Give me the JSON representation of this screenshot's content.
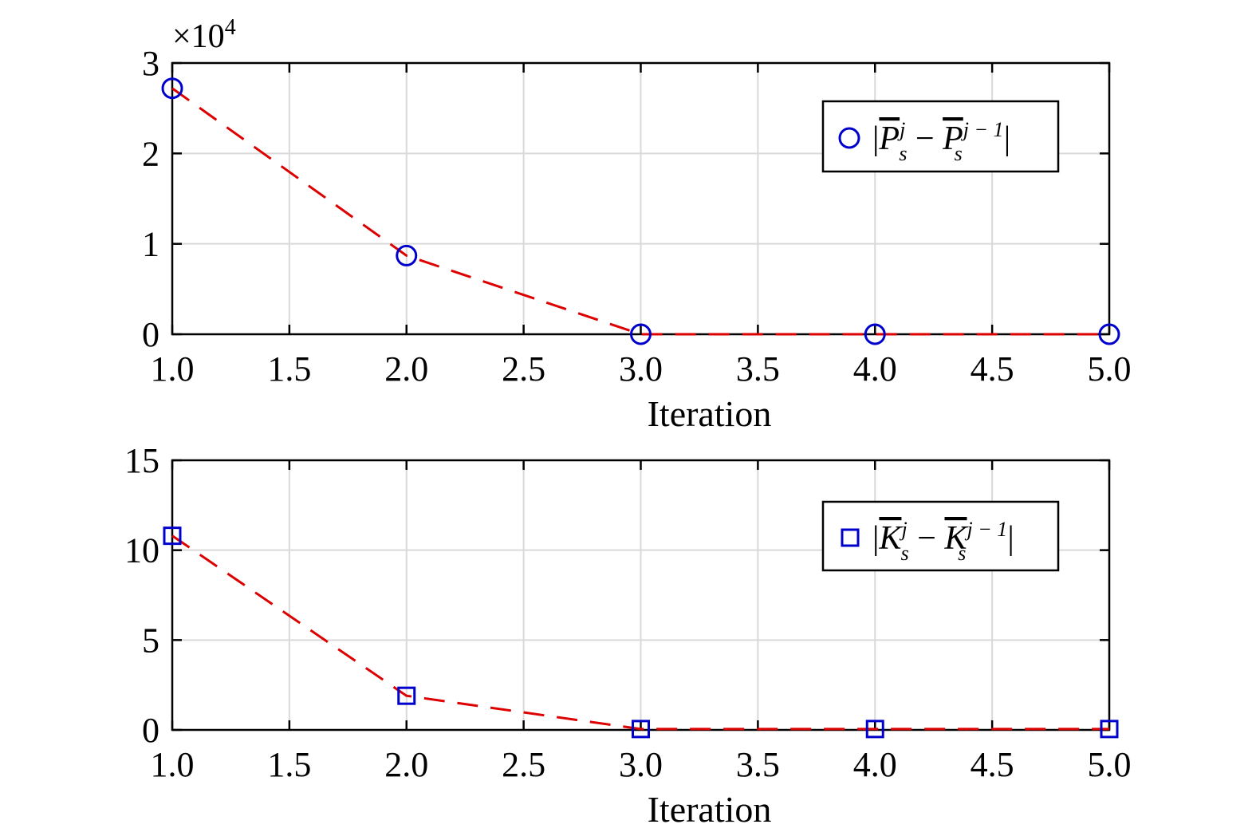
{
  "chart_data": [
    {
      "type": "line",
      "xlabel": "Iteration",
      "ylabel": "",
      "xlim": [
        1.0,
        5.0
      ],
      "ylim": [
        0,
        3
      ],
      "y_exponent_label": {
        "base": "×10",
        "exp": "4"
      },
      "x_ticks": [
        "1.0",
        "1.5",
        "2.0",
        "2.5",
        "3.0",
        "3.5",
        "4.0",
        "4.5",
        "5.0"
      ],
      "y_ticks": [
        "0",
        "1",
        "2",
        "3"
      ],
      "grid": true,
      "legend_position": "top-right",
      "series": [
        {
          "name": "|P̄sj − P̄sj−1|",
          "legend": {
            "bar": "|",
            "sym": "P",
            "sup1": "j",
            "sub": "s",
            "minus": "−",
            "sup2": "j − 1"
          },
          "marker": "circle",
          "marker_color": "#0000cc",
          "line_color": "#dd0000",
          "line_style": "dashed",
          "x": [
            1,
            2,
            3,
            4,
            5
          ],
          "y": [
            2.72,
            0.87,
            0.0,
            0.0,
            0.0
          ]
        }
      ]
    },
    {
      "type": "line",
      "xlabel": "Iteration",
      "ylabel": "",
      "xlim": [
        1.0,
        5.0
      ],
      "ylim": [
        0,
        15
      ],
      "x_ticks": [
        "1.0",
        "1.5",
        "2.0",
        "2.5",
        "3.0",
        "3.5",
        "4.0",
        "4.5",
        "5.0"
      ],
      "y_ticks": [
        "0",
        "5",
        "10",
        "15"
      ],
      "grid": true,
      "legend_position": "top-right",
      "series": [
        {
          "name": "|K̄sj − K̄sj−1|",
          "legend": {
            "bar": "|",
            "sym": "K",
            "sup1": "j",
            "sub": "s",
            "minus": "−",
            "sup2": "j − 1"
          },
          "marker": "square",
          "marker_color": "#0000cc",
          "line_color": "#dd0000",
          "line_style": "dashed",
          "x": [
            1,
            2,
            3,
            4,
            5
          ],
          "y": [
            10.8,
            1.9,
            0.05,
            0.05,
            0.05
          ]
        }
      ]
    }
  ]
}
